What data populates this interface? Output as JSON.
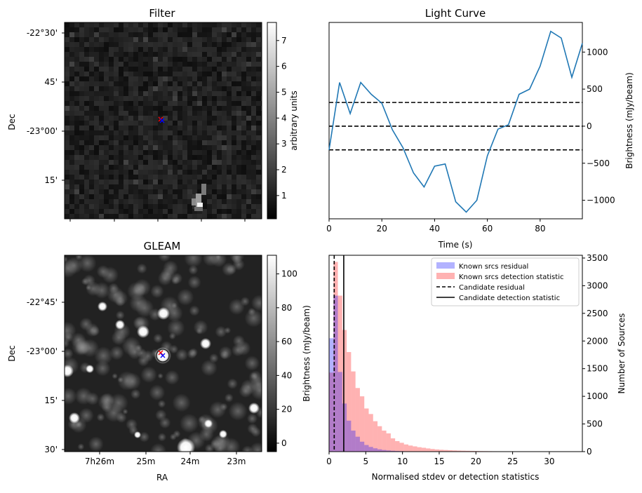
{
  "chart_data": [
    {
      "type": "heatmap",
      "title": "Filter",
      "ylabel": "Dec",
      "ytick_labels": [
        "-22°30'",
        "45'",
        "-23°00'",
        "15'"
      ],
      "colorbar": {
        "label": "arbitrary units",
        "range": [
          0.1,
          7.7
        ],
        "ticks": [
          1,
          2,
          3,
          4,
          5,
          6,
          7
        ]
      },
      "markers": [
        "red x",
        "blue x"
      ]
    },
    {
      "type": "line",
      "title": "Light Curve",
      "xlabel": "Time (s)",
      "ylabel": "Brightness (mJy/beam)",
      "xlim": [
        0,
        96
      ],
      "ylim": [
        -1250,
        1400
      ],
      "xticks": [
        0,
        20,
        40,
        60,
        80
      ],
      "yticks": [
        -1000,
        -500,
        0,
        500,
        1000
      ],
      "x": [
        0,
        4,
        8,
        12,
        16,
        20,
        24,
        28,
        32,
        36,
        40,
        44,
        48,
        52,
        56,
        60,
        64,
        68,
        72,
        76,
        80,
        84,
        88,
        92,
        96
      ],
      "y": [
        -320,
        590,
        170,
        590,
        430,
        310,
        -50,
        -290,
        -630,
        -820,
        -540,
        -510,
        -1020,
        -1160,
        -1000,
        -400,
        -40,
        20,
        430,
        500,
        810,
        1280,
        1190,
        660,
        1120
      ],
      "hlines": [
        320,
        0,
        -320
      ],
      "color": "#1f77b4"
    },
    {
      "type": "heatmap",
      "title": "GLEAM",
      "xlabel": "RA",
      "ylabel": "Dec",
      "xtick_labels": [
        "7h26m",
        "25m",
        "24m",
        "23m"
      ],
      "ytick_labels": [
        "-22°45'",
        "-23°00'",
        "15'",
        "30'"
      ],
      "colorbar": {
        "label": "Brightness (mJy/beam)",
        "range": [
          -5,
          111
        ],
        "ticks": [
          0,
          20,
          40,
          60,
          80,
          100
        ]
      },
      "markers": [
        "red x",
        "blue x"
      ]
    },
    {
      "type": "bar",
      "xlabel": "Normalised stdev or detection statistics",
      "ylabel": "Number of Sources",
      "xlim": [
        0,
        34.5
      ],
      "ylim": [
        0,
        3550
      ],
      "xticks": [
        0,
        5,
        10,
        15,
        20,
        25,
        30
      ],
      "yticks": [
        0,
        500,
        1000,
        1500,
        2000,
        2500,
        3000,
        3500
      ],
      "bin_width": 0.6,
      "series": [
        {
          "name": "Known srcs residual",
          "color": "#0000ff",
          "values": [
            2050,
            2820,
            1440,
            870,
            560,
            380,
            270,
            180,
            120,
            85,
            60,
            42,
            30,
            22,
            16,
            12,
            9,
            6,
            5,
            4,
            3,
            2,
            2,
            1
          ]
        },
        {
          "name": "Known srcs detection statistic",
          "color": "#ff0000",
          "values": [
            1430,
            3430,
            2820,
            2200,
            1800,
            1450,
            1150,
            1000,
            780,
            680,
            550,
            460,
            380,
            330,
            240,
            190,
            160,
            130,
            110,
            95,
            80,
            70,
            58,
            48,
            40,
            34,
            30,
            26,
            22,
            19,
            17,
            15,
            13,
            11,
            10,
            9,
            8,
            7,
            6,
            6,
            5,
            5,
            4,
            4,
            4,
            3,
            3,
            3,
            3,
            2,
            2,
            2,
            2,
            2,
            1,
            1,
            1,
            1
          ]
        }
      ],
      "vlines": [
        {
          "name": "Candidate residual",
          "x": 0.7,
          "style": "dashed"
        },
        {
          "name": "Candidate detection statistic",
          "x": 2.0,
          "style": "solid"
        }
      ],
      "legend": "top-right"
    }
  ]
}
